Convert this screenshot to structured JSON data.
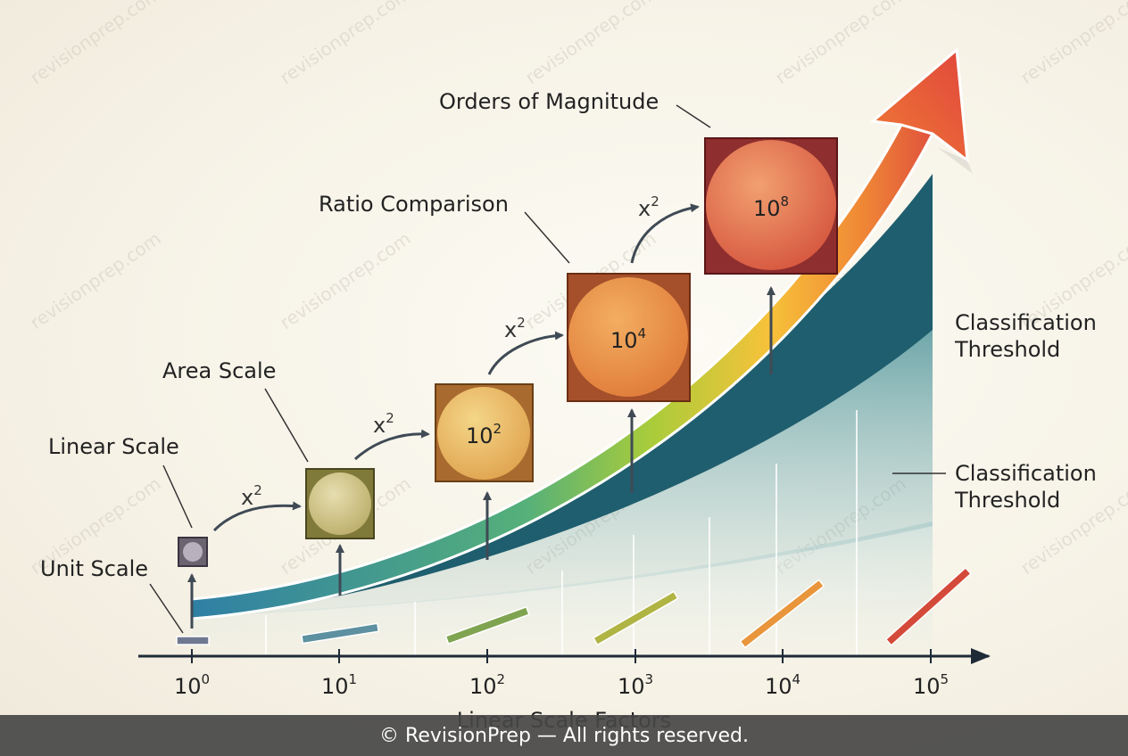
{
  "labels": {
    "unit_scale": "Unit Scale",
    "linear_scale": "Linear Scale",
    "area_scale": "Area Scale",
    "ratio_comparison": "Ratio Comparison",
    "orders_of_magnitude": "Orders of Magnitude",
    "classification_threshold_1": [
      "Classification",
      "Threshold"
    ],
    "classification_threshold_2": [
      "Classification",
      "Threshold"
    ]
  },
  "multipliers": [
    "x",
    "x",
    "x",
    "x"
  ],
  "multiplier_exponent": "2",
  "boxes": [
    {
      "base": "10",
      "exp": "2"
    },
    {
      "base": "10",
      "exp": "4"
    },
    {
      "base": "10",
      "exp": "8"
    }
  ],
  "axis": {
    "ticks": [
      {
        "base": "10",
        "exp": "0"
      },
      {
        "base": "10",
        "exp": "1"
      },
      {
        "base": "10",
        "exp": "2"
      },
      {
        "base": "10",
        "exp": "3"
      },
      {
        "base": "10",
        "exp": "4"
      },
      {
        "base": "10",
        "exp": "5"
      }
    ],
    "title": "Linear Scale Factors"
  },
  "colors": {
    "curve_start": "#2f7fa5",
    "curve_mid": "#8cc63e",
    "curve_yellow": "#f7c23a",
    "curve_end": "#e0523d",
    "teal": "#1f5e6e"
  },
  "watermark": "revisionprep.com",
  "footer": "© RevisionPrep — All rights reserved."
}
